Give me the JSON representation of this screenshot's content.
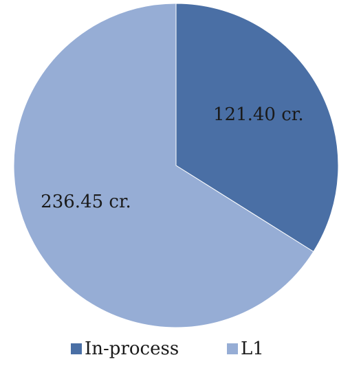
{
  "chart_data": {
    "type": "pie",
    "categories": [
      "In-process",
      "L1"
    ],
    "values": [
      121.4,
      236.45
    ],
    "labels": [
      "121.40 cr.",
      "236.45 cr."
    ],
    "colors": [
      "#4A6FA5",
      "#96ADD5"
    ],
    "start_angle_deg": 0,
    "direction": "clockwise",
    "legend_position": "bottom"
  }
}
